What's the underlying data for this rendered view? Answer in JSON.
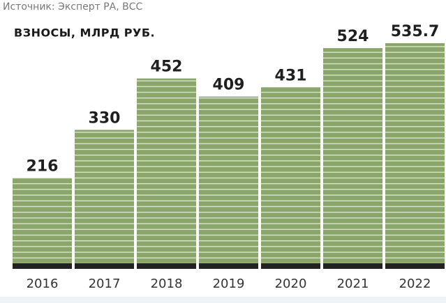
{
  "chart_data": {
    "type": "bar",
    "source": "Источник: Эксперт РА, ВСС",
    "title": "ВЗНОСЫ, МЛРД РУБ.",
    "categories": [
      "2016",
      "2017",
      "2018",
      "2019",
      "2020",
      "2021",
      "2022"
    ],
    "values": [
      216,
      330,
      452,
      409,
      431,
      524,
      535.7
    ],
    "color": "#8ba66b"
  }
}
